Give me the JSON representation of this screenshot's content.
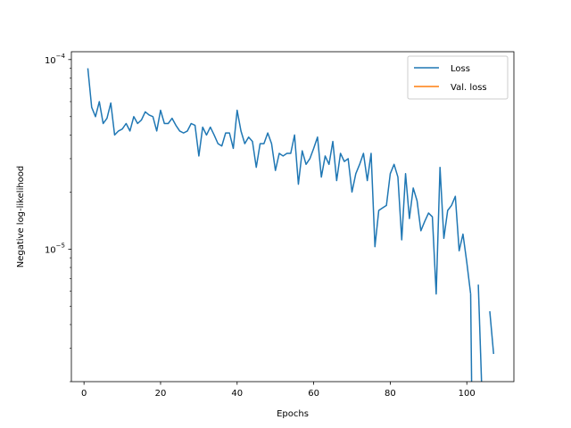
{
  "chart_data": {
    "type": "line",
    "title": "",
    "xlabel": "Epochs",
    "ylabel": "Negative log-likelihood",
    "xlim": [
      -3.3,
      112.3
    ],
    "ylim": [
      2e-06,
      0.00011
    ],
    "yscale": "log",
    "x_ticks": [
      0,
      20,
      40,
      60,
      80,
      100
    ],
    "y_ticks": [
      {
        "value": 0.0001,
        "base": "10",
        "exp": "−4"
      },
      {
        "value": 1e-05,
        "base": "10",
        "exp": "−5"
      }
    ],
    "grid": false,
    "legend_position": "top-right",
    "series": [
      {
        "name": "Loss",
        "color": "#1f77b4",
        "x": [
          1,
          2,
          3,
          4,
          5,
          6,
          7,
          8,
          9,
          10,
          11,
          12,
          13,
          14,
          15,
          16,
          17,
          18,
          19,
          20,
          21,
          22,
          23,
          24,
          25,
          26,
          27,
          28,
          29,
          30,
          31,
          32,
          33,
          34,
          35,
          36,
          37,
          38,
          39,
          40,
          41,
          42,
          43,
          44,
          45,
          46,
          47,
          48,
          49,
          50,
          51,
          52,
          53,
          54,
          55,
          56,
          57,
          58,
          59,
          60,
          61,
          62,
          63,
          64,
          65,
          66,
          67,
          68,
          69,
          70,
          71,
          72,
          73,
          74,
          75,
          76,
          77,
          78,
          79,
          80,
          81,
          82,
          83,
          84,
          85,
          86,
          87,
          88,
          89,
          90,
          91,
          92,
          93,
          94,
          95,
          96,
          97,
          98,
          99,
          100,
          101,
          102,
          103,
          104,
          105,
          106,
          107
        ],
        "values": [
          9e-05,
          5.6e-05,
          5e-05,
          6e-05,
          4.6e-05,
          4.9e-05,
          5.9e-05,
          4e-05,
          4.2e-05,
          4.3e-05,
          4.6e-05,
          4.2e-05,
          5e-05,
          4.6e-05,
          4.8e-05,
          5.3e-05,
          5.1e-05,
          5e-05,
          4.2e-05,
          5.4e-05,
          4.6e-05,
          4.6e-05,
          4.9e-05,
          4.5e-05,
          4.2e-05,
          4.1e-05,
          4.2e-05,
          4.6e-05,
          4.5e-05,
          3.1e-05,
          4.4e-05,
          4e-05,
          4.4e-05,
          4e-05,
          3.6e-05,
          3.5e-05,
          4.1e-05,
          4.1e-05,
          3.4e-05,
          5.4e-05,
          4.2e-05,
          3.6e-05,
          3.9e-05,
          3.7e-05,
          2.7e-05,
          3.6e-05,
          3.6e-05,
          4.1e-05,
          3.6e-05,
          2.6e-05,
          3.2e-05,
          3.1e-05,
          3.2e-05,
          3.2e-05,
          4e-05,
          2.2e-05,
          3.3e-05,
          2.8e-05,
          3e-05,
          3.4e-05,
          3.9e-05,
          2.4e-05,
          3.1e-05,
          2.8e-05,
          3.7e-05,
          2.3e-05,
          3.2e-05,
          2.9e-05,
          3e-05,
          2e-05,
          2.5e-05,
          2.8e-05,
          3.2e-05,
          2.3e-05,
          3.2e-05,
          1.03e-05,
          1.6e-05,
          1.65e-05,
          1.7e-05,
          2.5e-05,
          2.8e-05,
          2.4e-05,
          1.12e-05,
          2.5e-05,
          1.45e-05,
          2.1e-05,
          1.8e-05,
          1.25e-05,
          1.4e-05,
          1.55e-05,
          1.48e-05,
          5.8e-06,
          2.7e-05,
          1.14e-05,
          1.6e-05,
          1.7e-05,
          1.9e-05,
          9.8e-06,
          1.2e-05,
          8.5e-06,
          5.8e-06,
          null,
          6.5e-06,
          null,
          null,
          4.7e-06,
          2.8e-06
        ]
      },
      {
        "name": "Val. loss",
        "color": "#ff7f0e",
        "x": [],
        "values": []
      }
    ],
    "drops": [
      {
        "from_index": 100,
        "x_end": 101.3
      },
      {
        "from_index": 102,
        "x_end": 104.0
      },
      {
        "from_index": 104,
        "x_end": 105.5
      }
    ]
  }
}
